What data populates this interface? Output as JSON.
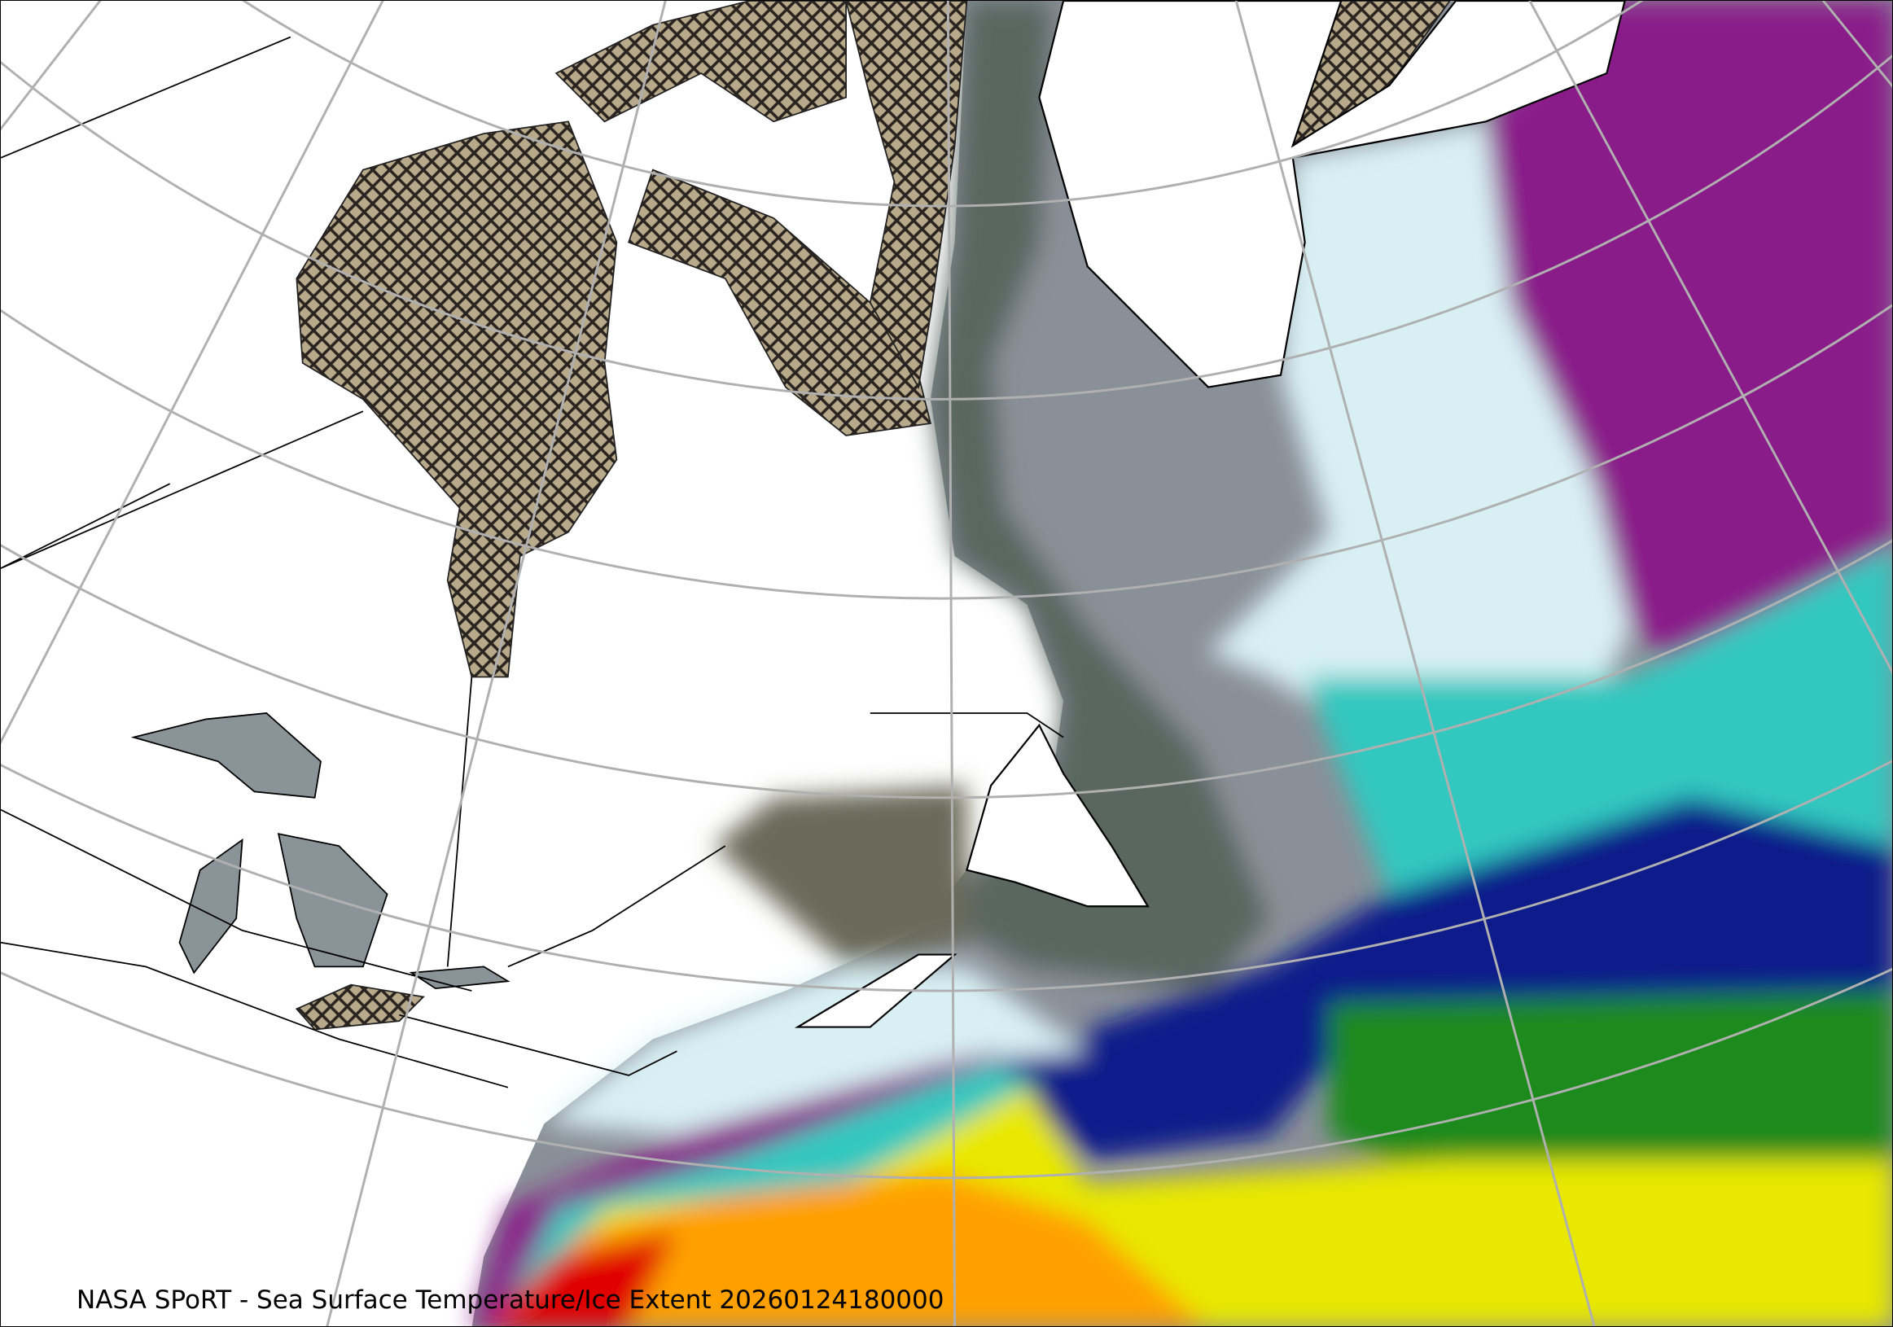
{
  "map": {
    "caption": "NASA SPoRT - Sea Surface Temperature/Ice Extent 20260124180000",
    "projection": "conic",
    "layers": [
      "sea-surface-temperature",
      "ice-extent-hatched",
      "coastlines",
      "political-borders",
      "lat-lon-grid"
    ],
    "colors": {
      "land": "#ffffff",
      "ice": "#b8a98a",
      "grid": "#b0b0b0",
      "coldest_water": "#8a1a8a",
      "cold_water": "#d8f0f4",
      "gray_water": "#8a9098",
      "coastal_water": "#5a6660",
      "teal_water": "#30c8c0",
      "navy_water": "#101a8a",
      "green_water": "#1a8a1a",
      "yellow_water": "#e8e800",
      "orange_water": "#ffa000",
      "warmest_water": "#e00000"
    }
  }
}
